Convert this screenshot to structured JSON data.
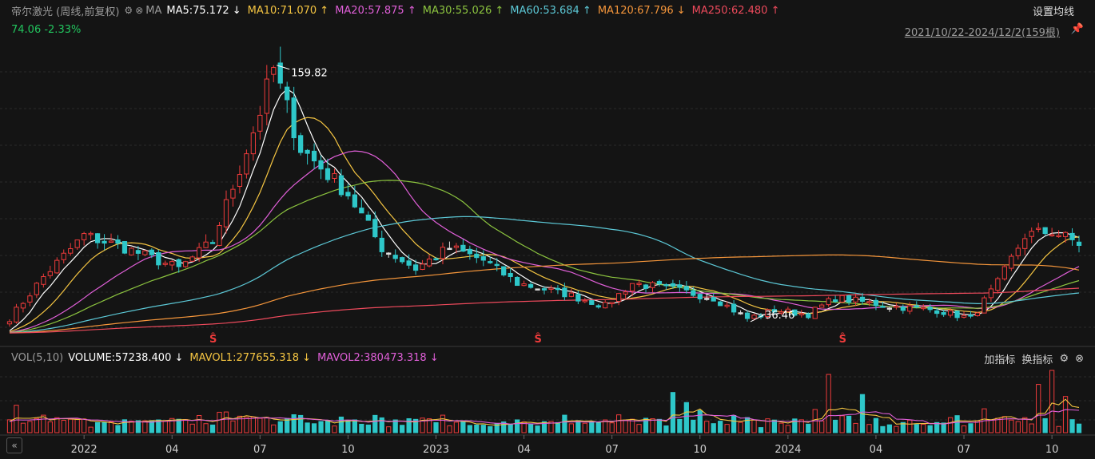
{
  "header": {
    "title": "帝尔激光 (周线,前复权)",
    "ma_label": "MA",
    "change_text": "74.06 -2.33%",
    "set_ma_label": "设置均线",
    "range_text": "2021/10/22-2024/12/2(159根)",
    "ma_items": [
      {
        "label": "MA5:75.172",
        "arrow": "↓",
        "color": "#ffffff"
      },
      {
        "label": "MA10:71.070",
        "arrow": "↑",
        "color": "#f5c542"
      },
      {
        "label": "MA20:57.875",
        "arrow": "↑",
        "color": "#e05fd8"
      },
      {
        "label": "MA30:55.026",
        "arrow": "↑",
        "color": "#8cc43f"
      },
      {
        "label": "MA60:53.684",
        "arrow": "↑",
        "color": "#5cc8d6"
      },
      {
        "label": "MA120:67.796",
        "arrow": "↓",
        "color": "#f5963b"
      },
      {
        "label": "MA250:62.480",
        "arrow": "↑",
        "color": "#ee4a5c"
      }
    ]
  },
  "volume_header": {
    "name": "VOL(5,10)",
    "items": [
      {
        "label": "VOLUME:57238.400",
        "arrow": "↓",
        "color": "#ffffff"
      },
      {
        "label": "MAVOL1:277655.318",
        "arrow": "↓",
        "color": "#f5c542"
      },
      {
        "label": "MAVOL2:380473.318",
        "arrow": "↓",
        "color": "#e05fd8"
      }
    ],
    "add_indicator": "加指标",
    "switch_indicator": "换指标"
  },
  "annotations": {
    "high": "159.82",
    "low": "36.46",
    "marker_glyph": "Ŝ"
  },
  "nav_button": "«",
  "colors": {
    "up": "#ee3b3b",
    "down": "#2ec7c9",
    "flat": "#dddddd",
    "background": "#141414"
  },
  "chart_data": {
    "type": "candlestick",
    "x_tick_labels": [
      "2022",
      "04",
      "07",
      "10",
      "2023",
      "04",
      "07",
      "10",
      "2024",
      "04",
      "07",
      "10"
    ],
    "y_range": [
      28,
      172
    ],
    "anchors": [
      {
        "t": 0,
        "price": 38
      },
      {
        "t": 5,
        "price": 58
      },
      {
        "t": 11,
        "price": 78
      },
      {
        "t": 17,
        "price": 72
      },
      {
        "t": 25,
        "price": 62
      },
      {
        "t": 30,
        "price": 75
      },
      {
        "t": 36,
        "price": 128
      },
      {
        "t": 39,
        "price": 158
      },
      {
        "t": 43,
        "price": 120
      },
      {
        "t": 50,
        "price": 98
      },
      {
        "t": 55,
        "price": 72
      },
      {
        "t": 60,
        "price": 62
      },
      {
        "t": 65,
        "price": 72
      },
      {
        "t": 70,
        "price": 66
      },
      {
        "t": 75,
        "price": 55
      },
      {
        "t": 82,
        "price": 50
      },
      {
        "t": 88,
        "price": 44
      },
      {
        "t": 92,
        "price": 55
      },
      {
        "t": 98,
        "price": 52
      },
      {
        "t": 104,
        "price": 48
      },
      {
        "t": 109,
        "price": 38
      },
      {
        "t": 113,
        "price": 42
      },
      {
        "t": 118,
        "price": 40
      },
      {
        "t": 122,
        "price": 48
      },
      {
        "t": 130,
        "price": 44
      },
      {
        "t": 137,
        "price": 42
      },
      {
        "t": 142,
        "price": 38
      },
      {
        "t": 146,
        "price": 55
      },
      {
        "t": 150,
        "price": 78
      },
      {
        "t": 154,
        "price": 80
      },
      {
        "t": 158,
        "price": 74
      }
    ],
    "bar_count": 159,
    "marker_indices": [
      30,
      78,
      123
    ],
    "volume_spikes": [
      {
        "i": 98,
        "v": 1
      },
      {
        "i": 100,
        "v": 0.75
      },
      {
        "i": 102,
        "v": 0.55
      },
      {
        "i": 121,
        "v": 1.45
      },
      {
        "i": 126,
        "v": 0.95
      },
      {
        "i": 152,
        "v": 1.2
      },
      {
        "i": 154,
        "v": 1.55
      },
      {
        "i": 156,
        "v": 0.9
      }
    ],
    "ma_periods": [
      5,
      10,
      20,
      30,
      60,
      120,
      250
    ]
  }
}
